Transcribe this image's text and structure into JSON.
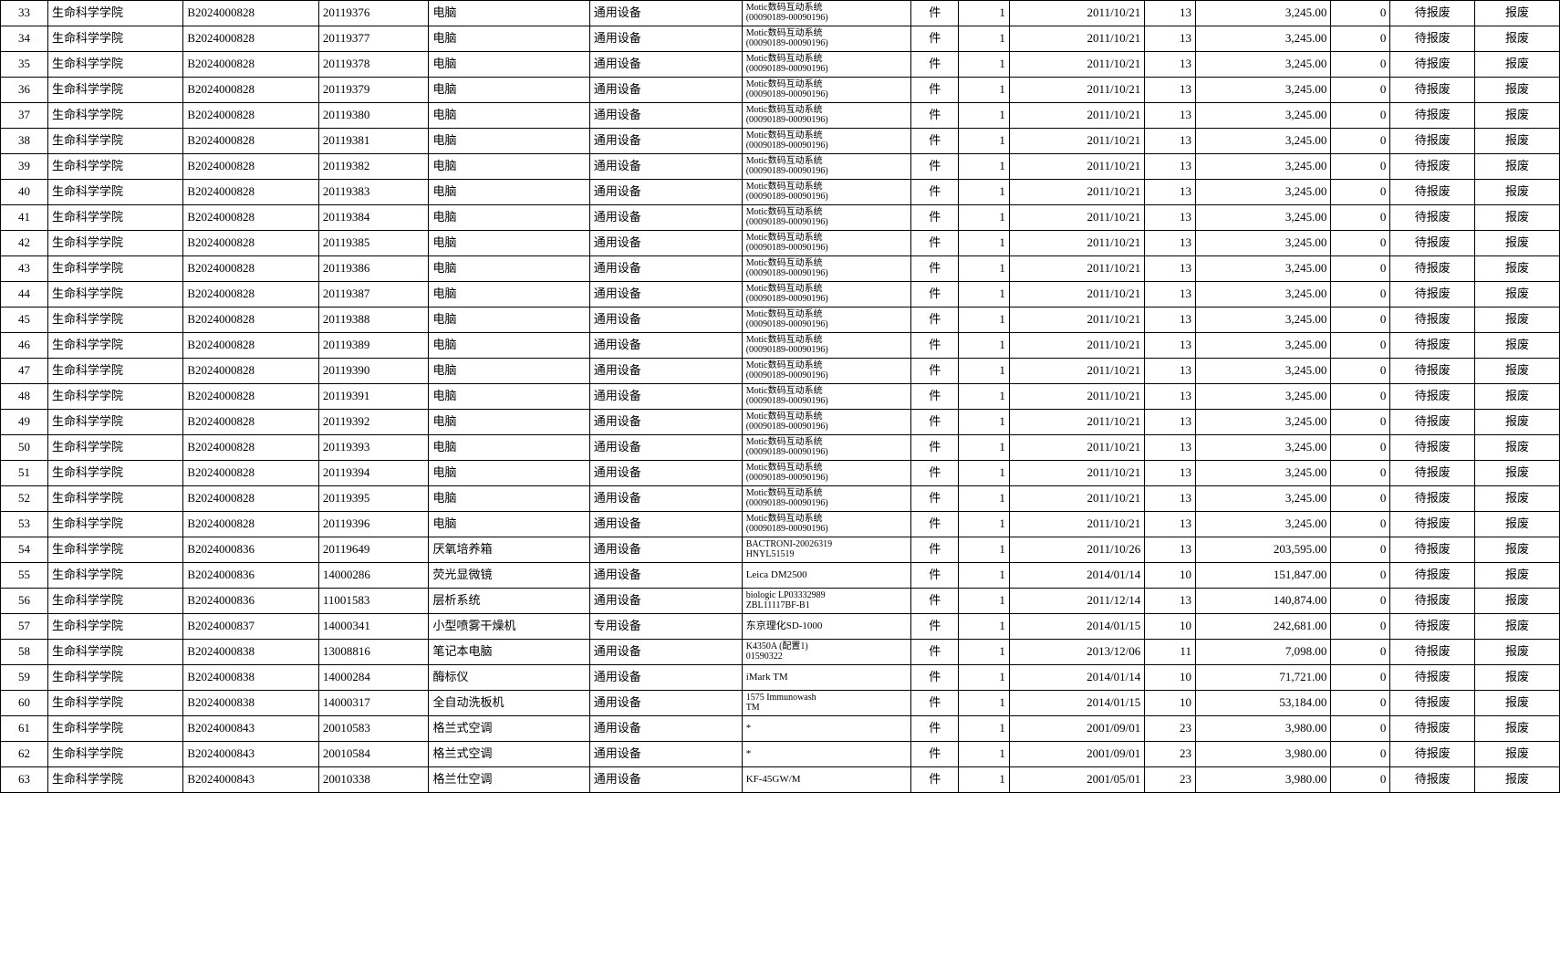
{
  "table": {
    "columns": [
      "seq",
      "dept",
      "doc",
      "assetNo",
      "name",
      "category",
      "model",
      "unit",
      "qty",
      "date",
      "years",
      "amount",
      "zero",
      "status",
      "action"
    ],
    "rows": [
      {
        "seq": "33",
        "dept": "生命科学学院",
        "doc": "B2024000828",
        "assetNo": "20119376",
        "name": "电脑",
        "category": "通用设备",
        "model": "Motic数码互动系统\n(00090189-00090196)",
        "unit": "件",
        "qty": "1",
        "date": "2011/10/21",
        "years": "13",
        "amount": "3,245.00",
        "zero": "0",
        "status": "待报废",
        "action": "报废"
      },
      {
        "seq": "34",
        "dept": "生命科学学院",
        "doc": "B2024000828",
        "assetNo": "20119377",
        "name": "电脑",
        "category": "通用设备",
        "model": "Motic数码互动系统\n(00090189-00090196)",
        "unit": "件",
        "qty": "1",
        "date": "2011/10/21",
        "years": "13",
        "amount": "3,245.00",
        "zero": "0",
        "status": "待报废",
        "action": "报废"
      },
      {
        "seq": "35",
        "dept": "生命科学学院",
        "doc": "B2024000828",
        "assetNo": "20119378",
        "name": "电脑",
        "category": "通用设备",
        "model": "Motic数码互动系统\n(00090189-00090196)",
        "unit": "件",
        "qty": "1",
        "date": "2011/10/21",
        "years": "13",
        "amount": "3,245.00",
        "zero": "0",
        "status": "待报废",
        "action": "报废"
      },
      {
        "seq": "36",
        "dept": "生命科学学院",
        "doc": "B2024000828",
        "assetNo": "20119379",
        "name": "电脑",
        "category": "通用设备",
        "model": "Motic数码互动系统\n(00090189-00090196)",
        "unit": "件",
        "qty": "1",
        "date": "2011/10/21",
        "years": "13",
        "amount": "3,245.00",
        "zero": "0",
        "status": "待报废",
        "action": "报废"
      },
      {
        "seq": "37",
        "dept": "生命科学学院",
        "doc": "B2024000828",
        "assetNo": "20119380",
        "name": "电脑",
        "category": "通用设备",
        "model": "Motic数码互动系统\n(00090189-00090196)",
        "unit": "件",
        "qty": "1",
        "date": "2011/10/21",
        "years": "13",
        "amount": "3,245.00",
        "zero": "0",
        "status": "待报废",
        "action": "报废"
      },
      {
        "seq": "38",
        "dept": "生命科学学院",
        "doc": "B2024000828",
        "assetNo": "20119381",
        "name": "电脑",
        "category": "通用设备",
        "model": "Motic数码互动系统\n(00090189-00090196)",
        "unit": "件",
        "qty": "1",
        "date": "2011/10/21",
        "years": "13",
        "amount": "3,245.00",
        "zero": "0",
        "status": "待报废",
        "action": "报废"
      },
      {
        "seq": "39",
        "dept": "生命科学学院",
        "doc": "B2024000828",
        "assetNo": "20119382",
        "name": "电脑",
        "category": "通用设备",
        "model": "Motic数码互动系统\n(00090189-00090196)",
        "unit": "件",
        "qty": "1",
        "date": "2011/10/21",
        "years": "13",
        "amount": "3,245.00",
        "zero": "0",
        "status": "待报废",
        "action": "报废"
      },
      {
        "seq": "40",
        "dept": "生命科学学院",
        "doc": "B2024000828",
        "assetNo": "20119383",
        "name": "电脑",
        "category": "通用设备",
        "model": "Motic数码互动系统\n(00090189-00090196)",
        "unit": "件",
        "qty": "1",
        "date": "2011/10/21",
        "years": "13",
        "amount": "3,245.00",
        "zero": "0",
        "status": "待报废",
        "action": "报废"
      },
      {
        "seq": "41",
        "dept": "生命科学学院",
        "doc": "B2024000828",
        "assetNo": "20119384",
        "name": "电脑",
        "category": "通用设备",
        "model": "Motic数码互动系统\n(00090189-00090196)",
        "unit": "件",
        "qty": "1",
        "date": "2011/10/21",
        "years": "13",
        "amount": "3,245.00",
        "zero": "0",
        "status": "待报废",
        "action": "报废"
      },
      {
        "seq": "42",
        "dept": "生命科学学院",
        "doc": "B2024000828",
        "assetNo": "20119385",
        "name": "电脑",
        "category": "通用设备",
        "model": "Motic数码互动系统\n(00090189-00090196)",
        "unit": "件",
        "qty": "1",
        "date": "2011/10/21",
        "years": "13",
        "amount": "3,245.00",
        "zero": "0",
        "status": "待报废",
        "action": "报废"
      },
      {
        "seq": "43",
        "dept": "生命科学学院",
        "doc": "B2024000828",
        "assetNo": "20119386",
        "name": "电脑",
        "category": "通用设备",
        "model": "Motic数码互动系统\n(00090189-00090196)",
        "unit": "件",
        "qty": "1",
        "date": "2011/10/21",
        "years": "13",
        "amount": "3,245.00",
        "zero": "0",
        "status": "待报废",
        "action": "报废"
      },
      {
        "seq": "44",
        "dept": "生命科学学院",
        "doc": "B2024000828",
        "assetNo": "20119387",
        "name": "电脑",
        "category": "通用设备",
        "model": "Motic数码互动系统\n(00090189-00090196)",
        "unit": "件",
        "qty": "1",
        "date": "2011/10/21",
        "years": "13",
        "amount": "3,245.00",
        "zero": "0",
        "status": "待报废",
        "action": "报废"
      },
      {
        "seq": "45",
        "dept": "生命科学学院",
        "doc": "B2024000828",
        "assetNo": "20119388",
        "name": "电脑",
        "category": "通用设备",
        "model": "Motic数码互动系统\n(00090189-00090196)",
        "unit": "件",
        "qty": "1",
        "date": "2011/10/21",
        "years": "13",
        "amount": "3,245.00",
        "zero": "0",
        "status": "待报废",
        "action": "报废"
      },
      {
        "seq": "46",
        "dept": "生命科学学院",
        "doc": "B2024000828",
        "assetNo": "20119389",
        "name": "电脑",
        "category": "通用设备",
        "model": "Motic数码互动系统\n(00090189-00090196)",
        "unit": "件",
        "qty": "1",
        "date": "2011/10/21",
        "years": "13",
        "amount": "3,245.00",
        "zero": "0",
        "status": "待报废",
        "action": "报废"
      },
      {
        "seq": "47",
        "dept": "生命科学学院",
        "doc": "B2024000828",
        "assetNo": "20119390",
        "name": "电脑",
        "category": "通用设备",
        "model": "Motic数码互动系统\n(00090189-00090196)",
        "unit": "件",
        "qty": "1",
        "date": "2011/10/21",
        "years": "13",
        "amount": "3,245.00",
        "zero": "0",
        "status": "待报废",
        "action": "报废"
      },
      {
        "seq": "48",
        "dept": "生命科学学院",
        "doc": "B2024000828",
        "assetNo": "20119391",
        "name": "电脑",
        "category": "通用设备",
        "model": "Motic数码互动系统\n(00090189-00090196)",
        "unit": "件",
        "qty": "1",
        "date": "2011/10/21",
        "years": "13",
        "amount": "3,245.00",
        "zero": "0",
        "status": "待报废",
        "action": "报废"
      },
      {
        "seq": "49",
        "dept": "生命科学学院",
        "doc": "B2024000828",
        "assetNo": "20119392",
        "name": "电脑",
        "category": "通用设备",
        "model": "Motic数码互动系统\n(00090189-00090196)",
        "unit": "件",
        "qty": "1",
        "date": "2011/10/21",
        "years": "13",
        "amount": "3,245.00",
        "zero": "0",
        "status": "待报废",
        "action": "报废"
      },
      {
        "seq": "50",
        "dept": "生命科学学院",
        "doc": "B2024000828",
        "assetNo": "20119393",
        "name": "电脑",
        "category": "通用设备",
        "model": "Motic数码互动系统\n(00090189-00090196)",
        "unit": "件",
        "qty": "1",
        "date": "2011/10/21",
        "years": "13",
        "amount": "3,245.00",
        "zero": "0",
        "status": "待报废",
        "action": "报废"
      },
      {
        "seq": "51",
        "dept": "生命科学学院",
        "doc": "B2024000828",
        "assetNo": "20119394",
        "name": "电脑",
        "category": "通用设备",
        "model": "Motic数码互动系统\n(00090189-00090196)",
        "unit": "件",
        "qty": "1",
        "date": "2011/10/21",
        "years": "13",
        "amount": "3,245.00",
        "zero": "0",
        "status": "待报废",
        "action": "报废"
      },
      {
        "seq": "52",
        "dept": "生命科学学院",
        "doc": "B2024000828",
        "assetNo": "20119395",
        "name": "电脑",
        "category": "通用设备",
        "model": "Motic数码互动系统\n(00090189-00090196)",
        "unit": "件",
        "qty": "1",
        "date": "2011/10/21",
        "years": "13",
        "amount": "3,245.00",
        "zero": "0",
        "status": "待报废",
        "action": "报废"
      },
      {
        "seq": "53",
        "dept": "生命科学学院",
        "doc": "B2024000828",
        "assetNo": "20119396",
        "name": "电脑",
        "category": "通用设备",
        "model": "Motic数码互动系统\n(00090189-00090196)",
        "unit": "件",
        "qty": "1",
        "date": "2011/10/21",
        "years": "13",
        "amount": "3,245.00",
        "zero": "0",
        "status": "待报废",
        "action": "报废"
      },
      {
        "seq": "54",
        "dept": "生命科学学院",
        "doc": "B2024000836",
        "assetNo": "20119649",
        "name": "厌氧培养箱",
        "category": "通用设备",
        "model": "BACTRONI-20026319\nHNYL51519",
        "unit": "件",
        "qty": "1",
        "date": "2011/10/26",
        "years": "13",
        "amount": "203,595.00",
        "zero": "0",
        "status": "待报废",
        "action": "报废"
      },
      {
        "seq": "55",
        "dept": "生命科学学院",
        "doc": "B2024000836",
        "assetNo": "14000286",
        "name": "荧光显微镜",
        "category": "通用设备",
        "model": "Leica DM2500",
        "unit": "件",
        "qty": "1",
        "date": "2014/01/14",
        "years": "10",
        "amount": "151,847.00",
        "zero": "0",
        "status": "待报废",
        "action": "报废"
      },
      {
        "seq": "56",
        "dept": "生命科学学院",
        "doc": "B2024000836",
        "assetNo": "11001583",
        "name": "层析系统",
        "category": "通用设备",
        "model": "biologic LP03332989\nZBL11117BF-B1",
        "unit": "件",
        "qty": "1",
        "date": "2011/12/14",
        "years": "13",
        "amount": "140,874.00",
        "zero": "0",
        "status": "待报废",
        "action": "报废"
      },
      {
        "seq": "57",
        "dept": "生命科学学院",
        "doc": "B2024000837",
        "assetNo": "14000341",
        "name": "小型喷雾干燥机",
        "category": "专用设备",
        "model": "东京理化SD-1000",
        "unit": "件",
        "qty": "1",
        "date": "2014/01/15",
        "years": "10",
        "amount": "242,681.00",
        "zero": "0",
        "status": "待报废",
        "action": "报废"
      },
      {
        "seq": "58",
        "dept": "生命科学学院",
        "doc": "B2024000838",
        "assetNo": "13008816",
        "name": "笔记本电脑",
        "category": "通用设备",
        "model": "K4350A (配置1)\n01590322",
        "unit": "件",
        "qty": "1",
        "date": "2013/12/06",
        "years": "11",
        "amount": "7,098.00",
        "zero": "0",
        "status": "待报废",
        "action": "报废"
      },
      {
        "seq": "59",
        "dept": "生命科学学院",
        "doc": "B2024000838",
        "assetNo": "14000284",
        "name": "酶标仪",
        "category": "通用设备",
        "model": "iMark TM",
        "unit": "件",
        "qty": "1",
        "date": "2014/01/14",
        "years": "10",
        "amount": "71,721.00",
        "zero": "0",
        "status": "待报废",
        "action": "报废"
      },
      {
        "seq": "60",
        "dept": "生命科学学院",
        "doc": "B2024000838",
        "assetNo": "14000317",
        "name": "全自动洗板机",
        "category": "通用设备",
        "model": "1575 Immunowash\nTM",
        "unit": "件",
        "qty": "1",
        "date": "2014/01/15",
        "years": "10",
        "amount": "53,184.00",
        "zero": "0",
        "status": "待报废",
        "action": "报废"
      },
      {
        "seq": "61",
        "dept": "生命科学学院",
        "doc": "B2024000843",
        "assetNo": "20010583",
        "name": "格兰式空调",
        "category": "通用设备",
        "model": "*",
        "unit": "件",
        "qty": "1",
        "date": "2001/09/01",
        "years": "23",
        "amount": "3,980.00",
        "zero": "0",
        "status": "待报废",
        "action": "报废"
      },
      {
        "seq": "62",
        "dept": "生命科学学院",
        "doc": "B2024000843",
        "assetNo": "20010584",
        "name": "格兰式空调",
        "category": "通用设备",
        "model": "*",
        "unit": "件",
        "qty": "1",
        "date": "2001/09/01",
        "years": "23",
        "amount": "3,980.00",
        "zero": "0",
        "status": "待报废",
        "action": "报废"
      },
      {
        "seq": "63",
        "dept": "生命科学学院",
        "doc": "B2024000843",
        "assetNo": "20010338",
        "name": "格兰仕空调",
        "category": "通用设备",
        "model": "KF-45GW/M",
        "unit": "件",
        "qty": "1",
        "date": "2001/05/01",
        "years": "23",
        "amount": "3,980.00",
        "zero": "0",
        "status": "待报废",
        "action": "报废"
      }
    ]
  }
}
